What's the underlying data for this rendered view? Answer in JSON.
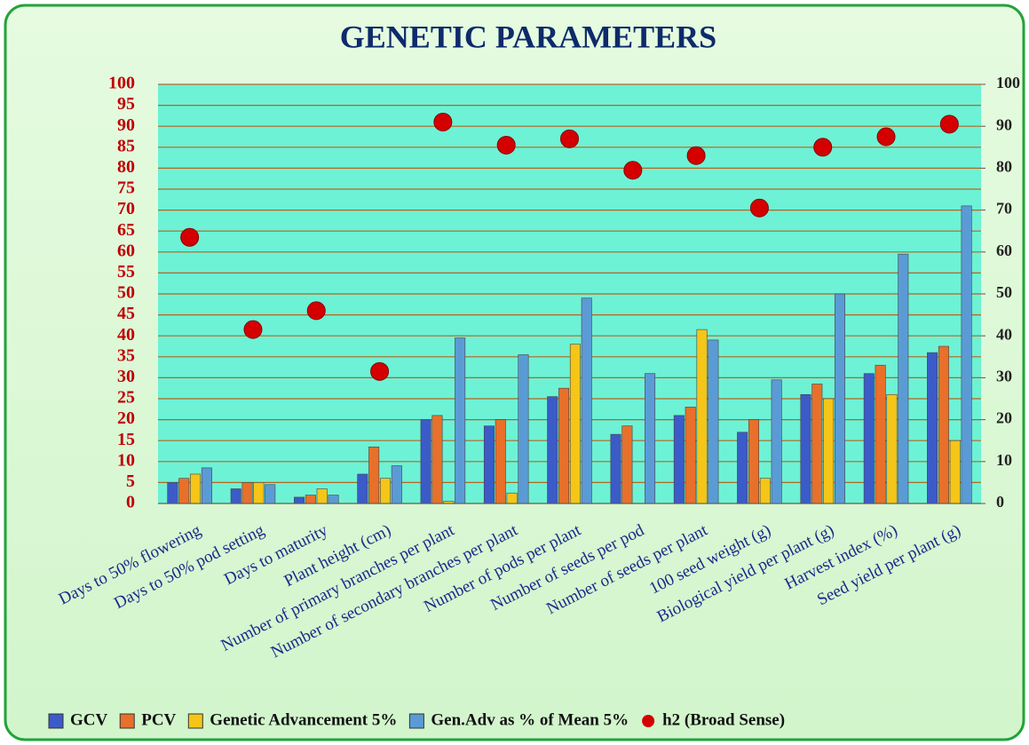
{
  "chart_data": {
    "type": "bar",
    "title": "GENETIC PARAMETERS",
    "categories": [
      "Days to 50% flowering",
      "Days to 50% pod setting",
      "Days to maturity",
      "Plant height (cm)",
      "Number of primary branches per plant",
      "Number of secondary branches per plant",
      "Number of pods per plant",
      "Number of seeds per pod",
      "Number of seeds per plant",
      "100 seed weight (g)",
      "Biological yield per plant (g)",
      "Harvest index (%)",
      "Seed yield per plant (g)"
    ],
    "series": [
      {
        "name": "GCV",
        "type": "bar",
        "color": "#3b5bc8",
        "values": [
          5,
          3.5,
          1.5,
          7,
          20,
          18.5,
          25.5,
          16.5,
          21,
          17,
          26,
          31,
          36
        ]
      },
      {
        "name": "PCV",
        "type": "bar",
        "color": "#e8702a",
        "values": [
          6,
          5,
          2,
          13.5,
          21,
          20,
          27.5,
          18.5,
          23,
          20,
          28.5,
          33,
          37.5
        ]
      },
      {
        "name": "Genetic Advancement 5%",
        "type": "bar",
        "color": "#f5c518",
        "values": [
          7,
          5,
          3.5,
          6,
          0.5,
          2.5,
          38,
          0,
          41.5,
          6,
          25,
          26,
          15
        ]
      },
      {
        "name": "Gen.Adv as % of Mean 5%",
        "type": "bar",
        "color": "#5b9bd5",
        "values": [
          8.5,
          4.5,
          2,
          9,
          39.5,
          35.5,
          49,
          31,
          39,
          29.5,
          50,
          59.5,
          71
        ]
      },
      {
        "name": "h2 (Broad Sense)",
        "type": "scatter",
        "axis": "y2",
        "color": "#d40000",
        "values": [
          63.5,
          41.5,
          46,
          31.5,
          91,
          85.5,
          87,
          79.5,
          83,
          70.5,
          85,
          87.5,
          90.5
        ]
      }
    ],
    "ylim": [
      0,
      100
    ],
    "yticks": [
      0,
      5,
      10,
      15,
      20,
      25,
      30,
      35,
      40,
      45,
      50,
      55,
      60,
      65,
      70,
      75,
      80,
      85,
      90,
      95,
      100
    ],
    "y2lim": [
      0,
      100
    ],
    "y2ticks": [
      0,
      10,
      20,
      30,
      40,
      50,
      60,
      70,
      80,
      90,
      100
    ],
    "grid": true,
    "legend": "bottom"
  }
}
